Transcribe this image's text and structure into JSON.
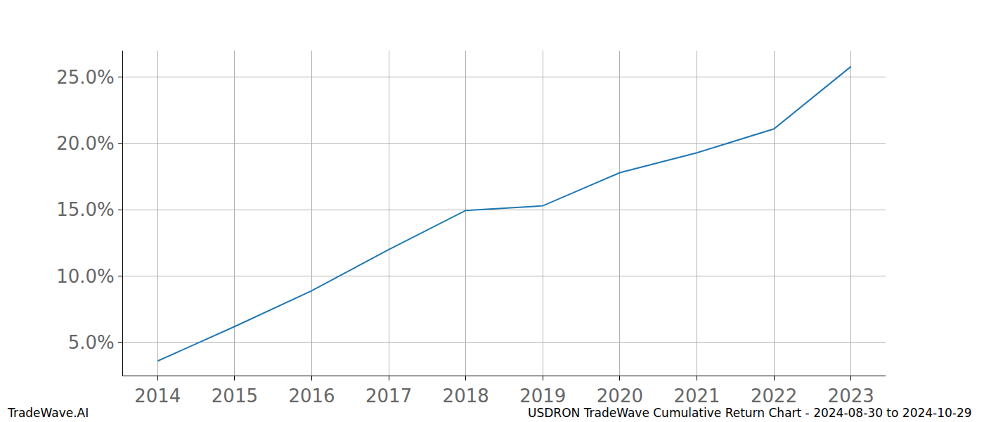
{
  "chart_data": {
    "type": "line",
    "title": "USDRON TradeWave Cumulative Return Chart - 2024-08-30 to 2024-10-29",
    "annotations": [
      "TradeWave.AI"
    ],
    "x": [
      2014,
      2015,
      2016,
      2017,
      2018,
      2019,
      2020,
      2021,
      2022,
      2023
    ],
    "values": [
      3.6,
      6.2,
      8.9,
      12.0,
      14.95,
      15.3,
      17.8,
      19.3,
      21.1,
      25.8
    ],
    "color": "#1f77b4",
    "xlim": [
      2013.55,
      2023.45
    ],
    "xticks": [
      2014,
      2015,
      2016,
      2017,
      2018,
      2019,
      2020,
      2021,
      2022,
      2023
    ],
    "ylim": [
      2.5,
      27.0
    ],
    "yticks": [
      {
        "value": 5,
        "label": "5.0%"
      },
      {
        "value": 10,
        "label": "10.0%"
      },
      {
        "value": 15,
        "label": "15.0%"
      },
      {
        "value": 20,
        "label": "20.0%"
      },
      {
        "value": 25,
        "label": "25.0%"
      }
    ],
    "grid": true
  }
}
